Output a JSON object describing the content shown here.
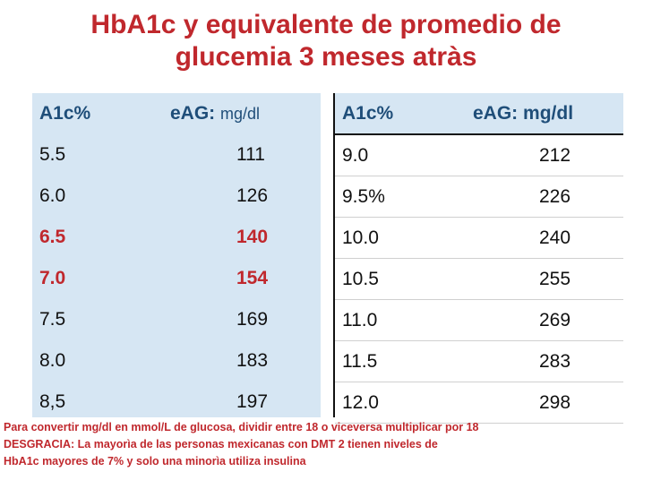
{
  "title": {
    "line1": "HbA1c y equivalente de promedio de",
    "line2": "glucemia 3 meses atràs"
  },
  "left_table": {
    "header": {
      "col1": "A1c%",
      "col2_main": "eAG:",
      "col2_unit": "mg/dl"
    },
    "rows": [
      {
        "a1c": "5.5",
        "eag": "111",
        "highlight": false
      },
      {
        "a1c": "6.0",
        "eag": "126",
        "highlight": false
      },
      {
        "a1c": "6.5",
        "eag": "140",
        "highlight": true
      },
      {
        "a1c": "7.0",
        "eag": "154",
        "highlight": true
      },
      {
        "a1c": "7.5",
        "eag": "169",
        "highlight": false
      },
      {
        "a1c": "8.0",
        "eag": "183",
        "highlight": false
      },
      {
        "a1c": "8,5",
        "eag": "197",
        "highlight": false
      }
    ]
  },
  "right_table": {
    "header": {
      "col1": "A1c%",
      "col2_main": "eAG:",
      "col2_unit": "mg/dl"
    },
    "rows": [
      {
        "a1c": "9.0",
        "eag": "212"
      },
      {
        "a1c": "9.5%",
        "eag": "226"
      },
      {
        "a1c": "10.0",
        "eag": "240"
      },
      {
        "a1c": "10.5",
        "eag": "255"
      },
      {
        "a1c": "11.0",
        "eag": "269"
      },
      {
        "a1c": "11.5",
        "eag": "283"
      },
      {
        "a1c": "12.0",
        "eag": "298"
      }
    ]
  },
  "notes": {
    "line1": "Para convertir mg/dl en mmol/L de glucosa,  dividir entre 18 o viceversa multiplicar por 18",
    "line2": "DESGRACIA: La mayorìa de las personas mexicanas con DMT 2 tienen niveles de",
    "line3": "HbA1c mayores de 7% y solo una minorìa utiliza insulina"
  },
  "colors": {
    "title": "#c0282d",
    "header": "#1f4e79",
    "highlight": "#c0282d",
    "table_fill": "#d6e6f3"
  }
}
